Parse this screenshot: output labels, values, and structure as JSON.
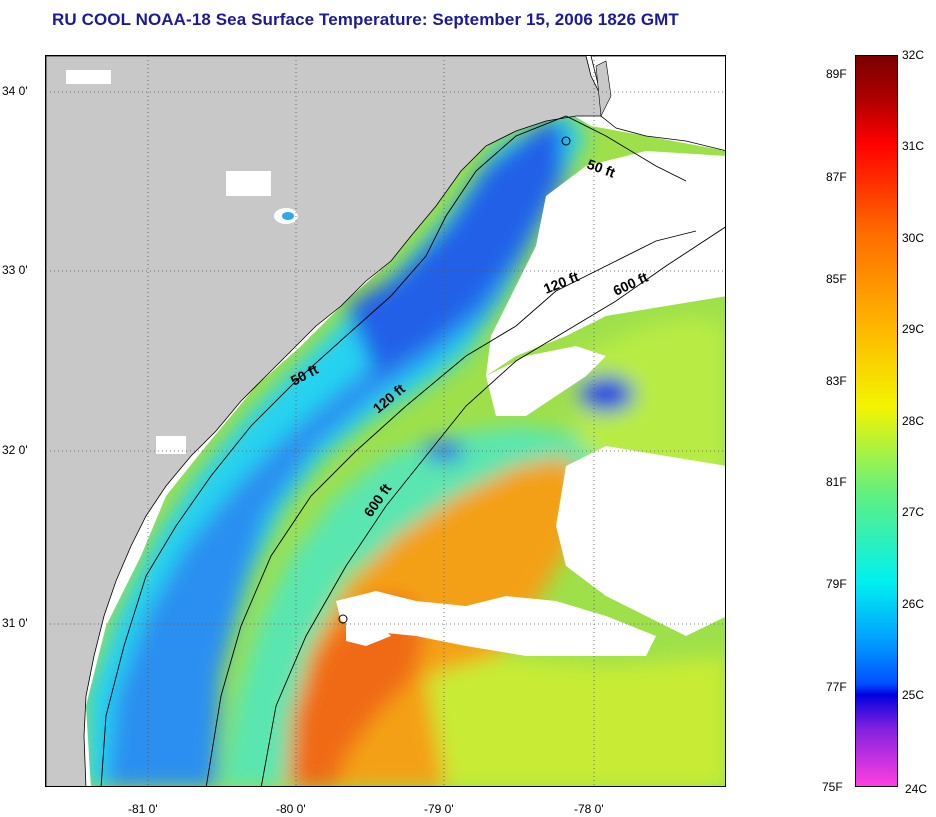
{
  "title": "RU COOL  NOAA-18  Sea Surface Temperature:  September 15, 2006 1826 GMT",
  "colors": {
    "land": "#c8c8c8",
    "cloud": "#ffffff",
    "title": "#1a1a9a"
  },
  "latitude_labels": [
    {
      "label": "34 0'",
      "value": 34.0
    },
    {
      "label": "33 0'",
      "value": 33.0
    },
    {
      "label": "32 0'",
      "value": 32.0
    },
    {
      "label": "31 0'",
      "value": 31.0
    }
  ],
  "longitude_labels": [
    {
      "label": "-81 0'",
      "value": -81.0
    },
    {
      "label": "-80 0'",
      "value": -80.0
    },
    {
      "label": "-79 0'",
      "value": -79.0
    },
    {
      "label": "-78 0'",
      "value": -78.0
    }
  ],
  "contours": [
    {
      "label": "50 ft",
      "depth_ft": 50
    },
    {
      "label": "50 ft",
      "depth_ft": 50
    },
    {
      "label": "120 ft",
      "depth_ft": 120
    },
    {
      "label": "120 ft",
      "depth_ft": 120
    },
    {
      "label": "600 ft",
      "depth_ft": 600
    },
    {
      "label": "600 ft",
      "depth_ft": 600
    }
  ],
  "colorbar": {
    "fahrenheit_labels": [
      "89F",
      "87F",
      "85F",
      "83F",
      "81F",
      "79F",
      "77F",
      "75F"
    ],
    "celsius_labels": [
      "32C",
      "31C",
      "30C",
      "29C",
      "28C",
      "27C",
      "26C",
      "25C",
      "24C"
    ],
    "min_c": 24,
    "max_c": 32
  }
}
